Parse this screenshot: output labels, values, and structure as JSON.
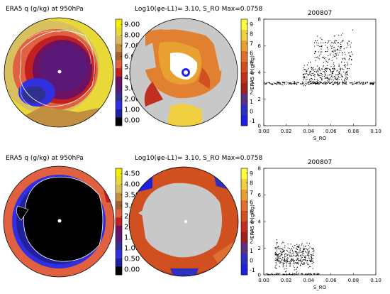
{
  "panels": {
    "arctic_title": "ERA5 q (g/kg) at 950hPa",
    "arctic_sens_title": "Log10(φe-L1)= 3.10, S_RO Max=0.0758",
    "antarctic_title": "ERA5 q (g/kg) at 950hPa",
    "antarctic_sens_title": "Log10(φe-L1)= 3.10, S_RO Max=0.0758",
    "q_cbar_top_labels": [
      "9.00",
      "8.00",
      "7.00",
      "6.00",
      "5.00",
      "4.00",
      "3.00",
      "2.00",
      "1.00",
      "0.00"
    ],
    "q_cbar_bot_labels": [
      "4.50",
      "4.00",
      "3.50",
      "3.00",
      "2.50",
      "2.00",
      "1.50",
      "1.00",
      "0.50",
      "0.00"
    ],
    "sens_cbar_labels": [
      "9",
      "8",
      "7",
      "6",
      "5",
      "4",
      "3",
      "2",
      "1",
      "0",
      "-1"
    ],
    "q_cbar_colors": [
      "#f0f000",
      "#e8d838",
      "#d8c060",
      "#c09040",
      "#a06030",
      "#e06040",
      "#c02020",
      "#701060",
      "#5a1878",
      "#303090",
      "#3030e0",
      "#2020a0",
      "#000000"
    ],
    "sens_cbar_colors": [
      "#ffff40",
      "#f0d040",
      "#e8a030",
      "#e07030",
      "#d05020",
      "#c03020",
      "#a02020",
      "#603080",
      "#3030c0",
      "#2020e0"
    ]
  },
  "chart_data": [
    {
      "type": "scatter",
      "title": "200807",
      "xlabel": "S_RO",
      "ylabel": "ERA5 q (g/kg)",
      "xlim": [
        0.0,
        0.1
      ],
      "ylim": [
        0,
        8
      ],
      "x_ticks": [
        "0.00",
        "0.02",
        "0.04",
        "0.06",
        "0.08",
        "0.10"
      ],
      "y_ticks": [
        "0",
        "2",
        "4",
        "6",
        "8"
      ],
      "clusters": [
        {
          "x_range": [
            0.0,
            0.1
          ],
          "y_center": 3.2,
          "y_spread": 0.08,
          "n": 260
        },
        {
          "x_range": [
            0.035,
            0.075
          ],
          "y_center": 3.9,
          "y_spread": 0.55,
          "n": 260
        },
        {
          "x_range": [
            0.045,
            0.08
          ],
          "y_center": 5.6,
          "y_spread": 0.9,
          "n": 170
        }
      ]
    },
    {
      "type": "scatter",
      "title": "200807",
      "xlabel": "S_RO",
      "ylabel": "ERA5 q (g/kg)",
      "xlim": [
        0.0,
        0.1
      ],
      "ylim": [
        0,
        8
      ],
      "x_ticks": [
        "0.00",
        "0.02",
        "0.04",
        "0.06",
        "0.08",
        "0.10"
      ],
      "y_ticks": [
        "0",
        "2",
        "4",
        "6",
        "8"
      ],
      "clusters": [
        {
          "x_range": [
            0.01,
            0.045
          ],
          "y_center": 1.4,
          "y_spread": 0.7,
          "n": 380
        },
        {
          "x_range": [
            0.0,
            0.05
          ],
          "y_center": 0.05,
          "y_spread": 0.05,
          "n": 80
        }
      ]
    }
  ]
}
